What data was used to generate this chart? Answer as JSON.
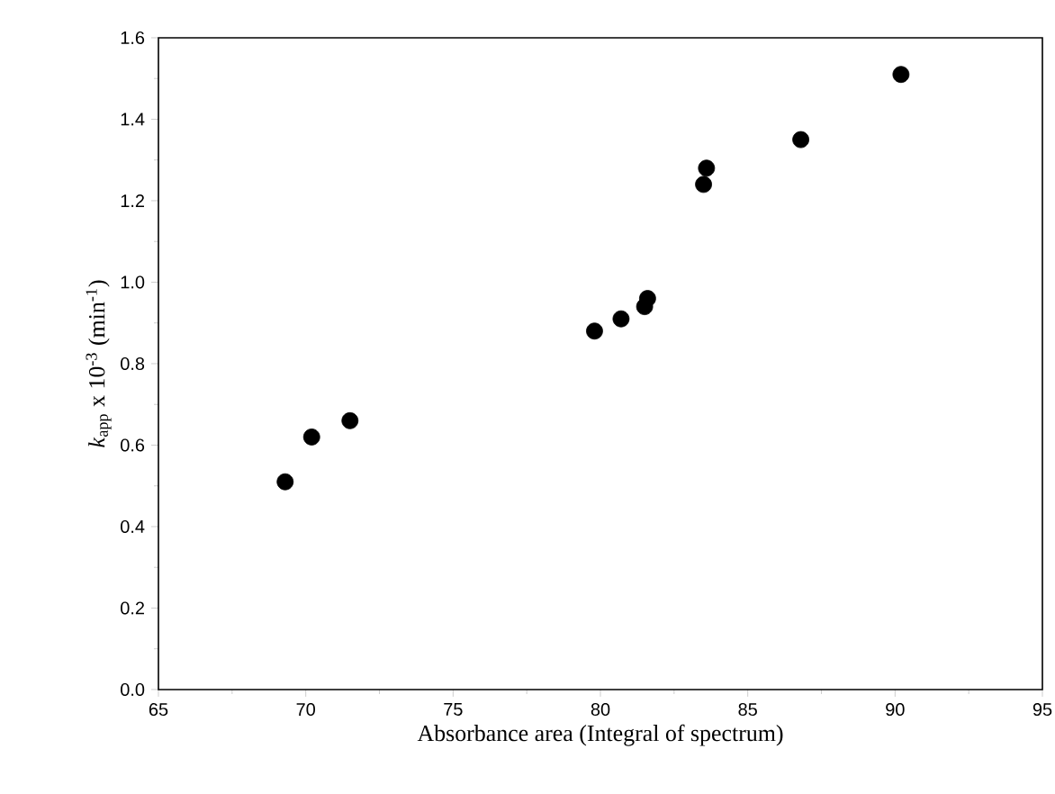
{
  "chart_data": {
    "type": "scatter",
    "xlabel": "Absorbance area (Integral of spectrum)",
    "ylabel": "*k*$_{app}$ x 10$^{-3}$ (min$^{-1}$)",
    "x": [
      69.3,
      70.2,
      71.5,
      79.8,
      80.7,
      81.5,
      81.6,
      83.5,
      83.6,
      86.8,
      90.2
    ],
    "values": [
      0.51,
      0.62,
      0.66,
      0.88,
      0.91,
      0.94,
      0.96,
      1.24,
      1.28,
      1.35,
      1.51
    ],
    "color": "#000000",
    "marker": "circle",
    "xlim": [
      65,
      95
    ],
    "xticks": [
      65,
      70,
      75,
      80,
      85,
      90,
      95
    ],
    "ylim": [
      0,
      1.6
    ],
    "yticks": [
      {
        "value": 0,
        "label": "0.0"
      },
      {
        "value": 0.2,
        "label": "0.2"
      },
      {
        "value": 0.4,
        "label": "0.4"
      },
      {
        "value": 0.6,
        "label": "0.6"
      },
      {
        "value": 0.8,
        "label": "0.8"
      },
      {
        "value": 1.0,
        "label": "1.0"
      },
      {
        "value": 1.2,
        "label": "1.2"
      },
      {
        "value": 1.4,
        "label": "1.4"
      },
      {
        "value": 1.6,
        "label": "1.6"
      }
    ]
  }
}
